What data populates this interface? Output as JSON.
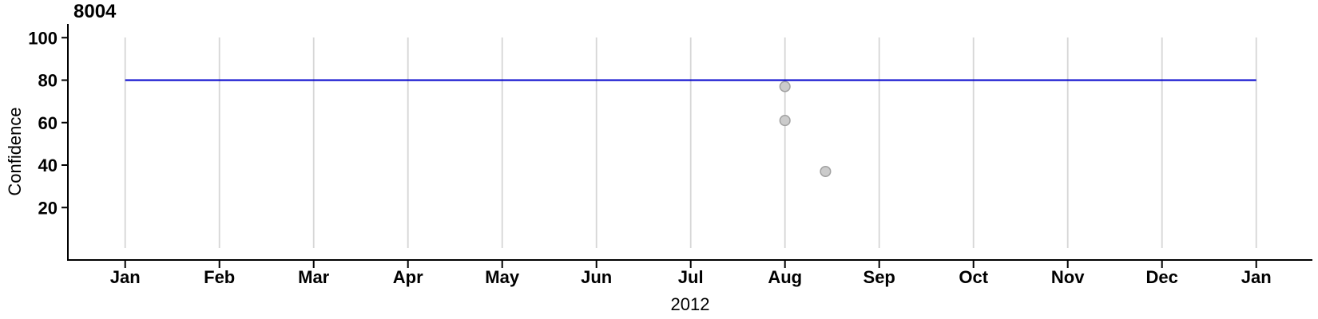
{
  "chart_data": {
    "type": "scatter",
    "title": "8004",
    "xlabel": "2012",
    "ylabel": "Confidence",
    "x_ticks": [
      "Jan",
      "Feb",
      "Mar",
      "Apr",
      "May",
      "Jun",
      "Jul",
      "Aug",
      "Sep",
      "Oct",
      "Nov",
      "Dec",
      "Jan"
    ],
    "y_ticks": [
      20,
      40,
      60,
      80,
      100
    ],
    "ylim": [
      0,
      100
    ],
    "xlim_months": [
      0,
      12
    ],
    "grid": "vertical gridlines at each month tick",
    "legend": "none",
    "reference_line": {
      "y": 80,
      "color": "#0000cc",
      "span_months": [
        0,
        12
      ]
    },
    "points": [
      {
        "month_offset": 7.0,
        "x_reading": "Aug 1",
        "y": 77
      },
      {
        "month_offset": 7.0,
        "x_reading": "Aug 1",
        "y": 61
      },
      {
        "month_offset": 7.43,
        "x_reading": "mid-Aug",
        "y": 37
      }
    ],
    "point_style": {
      "fill": "#cbcbcb",
      "stroke": "#a1a1a1"
    },
    "colors": {
      "axis": "#000000",
      "grid": "#d6d6d6",
      "background": "#ffffff"
    }
  }
}
